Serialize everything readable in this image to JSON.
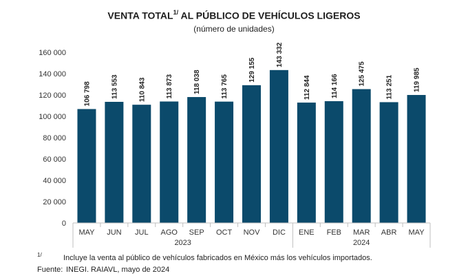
{
  "title": {
    "text": "VENTA TOTAL",
    "sup": "1/",
    "rest": " AL PÚBLICO DE VEHÍCULOS LIGEROS"
  },
  "subtitle": "(número de unidades)",
  "footnote": {
    "mark": "1/",
    "text": "Incluye la venta al público de vehículos fabricados en México más los vehículos importados."
  },
  "source": {
    "label": "Fuente:",
    "text": "INEGI. RAIAVL, mayo de 2024"
  },
  "colors": {
    "bar": "#0b4a6b",
    "axis": "#bfbfbf"
  },
  "chart_data": {
    "type": "bar",
    "categories": [
      "MAY",
      "JUN",
      "JUL",
      "AGO",
      "SEP",
      "OCT",
      "NOV",
      "DIC",
      "ENE",
      "FEB",
      "MAR",
      "ABR",
      "MAY"
    ],
    "values": [
      106798,
      113553,
      110843,
      113873,
      118038,
      113765,
      129155,
      143332,
      112844,
      114166,
      125475,
      113251,
      119985
    ],
    "value_labels": [
      "106 798",
      "113 553",
      "110 843",
      "113 873",
      "118 038",
      "113 765",
      "129 155",
      "143 332",
      "112 844",
      "114 166",
      "125 475",
      "113 251",
      "119 985"
    ],
    "ylim": [
      0,
      160000
    ],
    "yticks": [
      0,
      20000,
      40000,
      60000,
      80000,
      100000,
      120000,
      140000,
      160000
    ],
    "ytick_labels": [
      "0",
      "20 000",
      "40 000",
      "60 000",
      "80 000",
      "100 000",
      "120 000",
      "140 000",
      "160 000"
    ],
    "groups": [
      {
        "label": "2023",
        "start": 0,
        "end": 7
      },
      {
        "label": "2024",
        "start": 8,
        "end": 12
      }
    ],
    "grid": false,
    "legend": "none"
  }
}
